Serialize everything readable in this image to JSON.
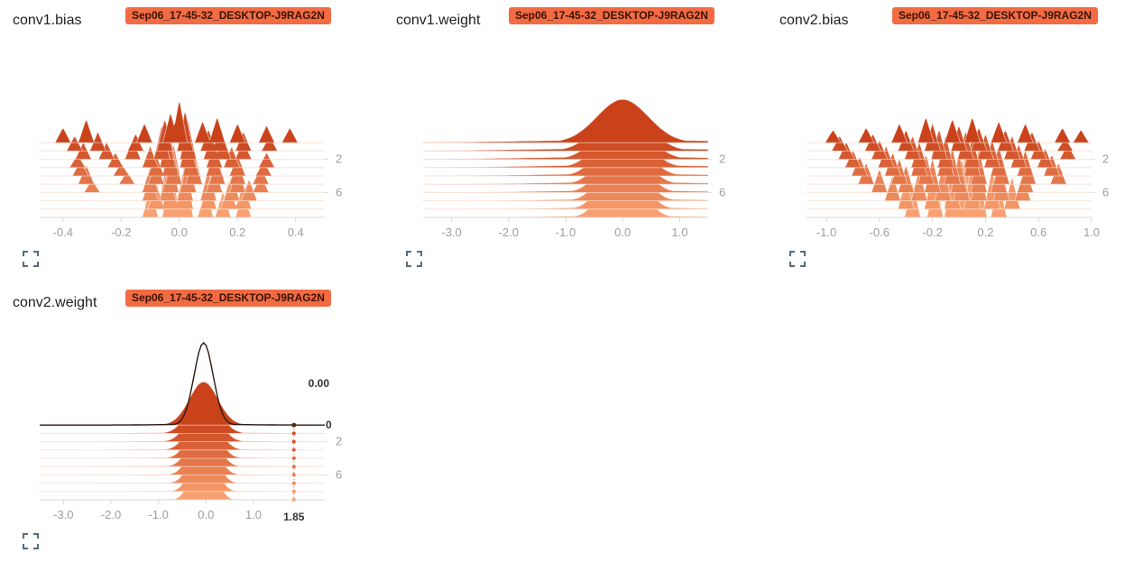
{
  "colors": {
    "ridge_dark": "#c9421a",
    "ridge_light": "#f9a070",
    "tag_bg": "#f26b43",
    "axis": "#d9d9d9",
    "tick_text": "#9e9e9e"
  },
  "icons": {
    "expand": "fullscreen-icon"
  },
  "cards": [
    {
      "title": "conv1.bias",
      "run": "Sep06_17-45-32_DESKTOP-J9RAG2N"
    },
    {
      "title": "conv1.weight",
      "run": "Sep06_17-45-32_DESKTOP-J9RAG2N"
    },
    {
      "title": "conv2.bias",
      "run": "Sep06_17-45-32_DESKTOP-J9RAG2N"
    },
    {
      "title": "conv2.weight",
      "run": "Sep06_17-45-32_DESKTOP-J9RAG2N"
    }
  ],
  "chart_data": [
    {
      "type": "area",
      "title": "conv1.bias",
      "xlim": [
        -0.48,
        0.5
      ],
      "xticks": [
        "-0.4",
        "-0.2",
        "0.0",
        "0.2",
        "0.4"
      ],
      "xtick_values": [
        -0.4,
        -0.2,
        0.0,
        0.2,
        0.4
      ],
      "yticks": [
        "2",
        "6"
      ],
      "ytick_values": [
        2,
        6
      ],
      "steps": [
        0,
        1,
        2,
        3,
        4,
        5,
        6,
        7,
        8,
        9
      ],
      "series": [
        {
          "x": [
            -0.4,
            -0.32,
            -0.12,
            -0.03,
            0.0,
            0.08,
            0.13,
            0.2,
            0.3,
            0.38
          ],
          "y": [
            0.35,
            0.55,
            0.45,
            0.7,
            1.0,
            0.5,
            0.6,
            0.45,
            0.4,
            0.35
          ]
        },
        {
          "x": [
            -0.36,
            -0.28,
            -0.15,
            -0.05,
            0.02,
            0.1,
            0.14,
            0.22,
            0.31
          ],
          "y": [
            0.35,
            0.45,
            0.4,
            0.75,
            0.95,
            0.5,
            0.55,
            0.45,
            0.35
          ]
        },
        {
          "x": [
            -0.33,
            -0.25,
            -0.16,
            -0.06,
            0.03,
            0.11,
            0.15,
            0.22
          ],
          "y": [
            0.4,
            0.4,
            0.45,
            0.8,
            0.9,
            0.5,
            0.55,
            0.45
          ]
        },
        {
          "x": [
            -0.35,
            -0.22,
            -0.1,
            -0.04,
            0.03,
            0.12,
            0.18,
            0.3
          ],
          "y": [
            0.3,
            0.35,
            0.5,
            0.85,
            0.9,
            0.55,
            0.5,
            0.35
          ]
        },
        {
          "x": [
            -0.34,
            -0.2,
            -0.08,
            -0.03,
            0.04,
            0.12,
            0.2,
            0.29
          ],
          "y": [
            0.35,
            0.3,
            0.5,
            0.9,
            0.85,
            0.6,
            0.5,
            0.35
          ]
        },
        {
          "x": [
            -0.32,
            -0.18,
            -0.08,
            -0.02,
            0.05,
            0.13,
            0.2,
            0.28
          ],
          "y": [
            0.45,
            0.3,
            0.55,
            0.95,
            0.85,
            0.65,
            0.55,
            0.4
          ]
        },
        {
          "x": [
            -0.3,
            -0.1,
            -0.03,
            0.03,
            0.12,
            0.2,
            0.28
          ],
          "y": [
            0.3,
            0.6,
            1.0,
            0.85,
            0.7,
            0.6,
            0.4
          ]
        },
        {
          "x": [
            -0.1,
            -0.04,
            0.02,
            0.1,
            0.18,
            0.24
          ],
          "y": [
            0.6,
            1.05,
            0.9,
            0.75,
            0.6,
            0.5
          ]
        },
        {
          "x": [
            -0.08,
            -0.03,
            0.02,
            0.1,
            0.17,
            0.22
          ],
          "y": [
            0.65,
            1.2,
            1.0,
            0.7,
            0.65,
            0.6
          ]
        },
        {
          "x": [
            -0.1,
            -0.03,
            0.02,
            0.09,
            0.15,
            0.22
          ],
          "y": [
            0.7,
            1.55,
            1.1,
            0.65,
            0.6,
            0.55
          ]
        }
      ]
    },
    {
      "type": "area",
      "title": "conv1.weight",
      "xlim": [
        -3.5,
        1.5
      ],
      "xticks": [
        "-3.0",
        "-2.0",
        "-1.0",
        "0.0",
        "1.0"
      ],
      "xtick_values": [
        -3.0,
        -2.0,
        -1.0,
        0.0,
        1.0
      ],
      "yticks": [
        "2",
        "6"
      ],
      "ytick_values": [
        2,
        6
      ],
      "steps": [
        0,
        1,
        2,
        3,
        4,
        5,
        6,
        7,
        8,
        9
      ],
      "series": [
        {
          "mu": 0.0,
          "sigma": 0.45,
          "peak": 1.0,
          "tail": 0.06
        },
        {
          "mu": 0.0,
          "sigma": 0.42,
          "peak": 1.05,
          "tail": 0.06
        },
        {
          "mu": 0.0,
          "sigma": 0.4,
          "peak": 1.1,
          "tail": 0.06
        },
        {
          "mu": 0.0,
          "sigma": 0.38,
          "peak": 1.15,
          "tail": 0.06
        },
        {
          "mu": 0.0,
          "sigma": 0.36,
          "peak": 1.2,
          "tail": 0.05
        },
        {
          "mu": 0.0,
          "sigma": 0.34,
          "peak": 1.25,
          "tail": 0.05
        },
        {
          "mu": 0.0,
          "sigma": 0.33,
          "peak": 1.3,
          "tail": 0.05
        },
        {
          "mu": 0.0,
          "sigma": 0.32,
          "peak": 1.35,
          "tail": 0.04
        },
        {
          "mu": 0.0,
          "sigma": 0.31,
          "peak": 1.4,
          "tail": 0.04
        },
        {
          "mu": 0.0,
          "sigma": 0.3,
          "peak": 1.45,
          "tail": 0.04
        }
      ]
    },
    {
      "type": "area",
      "title": "conv2.bias",
      "xlim": [
        -1.15,
        1.0
      ],
      "xticks": [
        "-1.0",
        "-0.6",
        "-0.2",
        "0.2",
        "0.6",
        "1.0"
      ],
      "xtick_values": [
        -1.0,
        -0.6,
        -0.2,
        0.2,
        0.6,
        1.0
      ],
      "yticks": [
        "2",
        "6"
      ],
      "ytick_values": [
        2,
        6
      ],
      "steps": [
        0,
        1,
        2,
        3,
        4,
        5,
        6,
        7,
        8,
        9
      ],
      "series": [
        {
          "x": [
            -0.95,
            -0.7,
            -0.45,
            -0.25,
            -0.05,
            0.1,
            0.3,
            0.5,
            0.78,
            0.92
          ],
          "y": [
            0.3,
            0.35,
            0.45,
            0.6,
            0.55,
            0.6,
            0.5,
            0.45,
            0.35,
            0.3
          ]
        },
        {
          "x": [
            -0.9,
            -0.65,
            -0.4,
            -0.2,
            0.0,
            0.15,
            0.35,
            0.55,
            0.8
          ],
          "y": [
            0.35,
            0.4,
            0.5,
            0.65,
            0.6,
            0.55,
            0.5,
            0.45,
            0.3
          ]
        },
        {
          "x": [
            -0.85,
            -0.6,
            -0.35,
            -0.15,
            0.05,
            0.2,
            0.4,
            0.6,
            0.82
          ],
          "y": [
            0.4,
            0.45,
            0.55,
            0.7,
            0.65,
            0.6,
            0.55,
            0.45,
            0.35
          ]
        },
        {
          "x": [
            -0.8,
            -0.55,
            -0.3,
            -0.1,
            0.1,
            0.25,
            0.45,
            0.65
          ],
          "y": [
            0.4,
            0.5,
            0.6,
            0.75,
            0.7,
            0.65,
            0.55,
            0.45
          ]
        },
        {
          "x": [
            -0.75,
            -0.5,
            -0.3,
            -0.1,
            0.1,
            0.3,
            0.5,
            0.7
          ],
          "y": [
            0.45,
            0.55,
            0.65,
            0.8,
            0.75,
            0.7,
            0.6,
            0.5
          ]
        },
        {
          "x": [
            -0.7,
            -0.45,
            -0.25,
            -0.05,
            0.15,
            0.32,
            0.52,
            0.75
          ],
          "y": [
            0.5,
            0.6,
            0.7,
            0.85,
            0.8,
            0.7,
            0.6,
            0.5
          ]
        },
        {
          "x": [
            -0.6,
            -0.4,
            -0.2,
            0.0,
            0.15,
            0.3,
            0.5
          ],
          "y": [
            0.55,
            0.65,
            0.8,
            0.9,
            0.85,
            0.75,
            0.6
          ]
        },
        {
          "x": [
            -0.5,
            -0.3,
            -0.12,
            0.02,
            0.15,
            0.32,
            0.48
          ],
          "y": [
            0.6,
            0.75,
            0.9,
            1.0,
            0.95,
            0.8,
            0.65
          ]
        },
        {
          "x": [
            -0.4,
            -0.2,
            -0.05,
            0.1,
            0.25,
            0.4
          ],
          "y": [
            0.7,
            0.9,
            1.1,
            1.2,
            0.95,
            0.75
          ]
        },
        {
          "x": [
            -0.35,
            -0.18,
            -0.05,
            0.05,
            0.15,
            0.3
          ],
          "y": [
            0.8,
            1.0,
            1.3,
            1.6,
            1.2,
            0.85
          ]
        }
      ]
    },
    {
      "type": "area",
      "title": "conv2.weight",
      "xlim": [
        -3.5,
        2.5
      ],
      "xticks": [
        "-3.0",
        "-2.0",
        "-1.0",
        "0.0",
        "1.0"
      ],
      "xtick_values": [
        -3.0,
        -2.0,
        -1.0,
        0.0,
        1.0
      ],
      "yticks": [
        "2",
        "6"
      ],
      "ytick_values": [
        2,
        6
      ],
      "steps": [
        0,
        1,
        2,
        3,
        4,
        5,
        6,
        7,
        8,
        9
      ],
      "hover": {
        "x_label": "1.85",
        "value_label": "0.00",
        "step_label": "0"
      },
      "series": [
        {
          "mu": -0.05,
          "sigma": 0.3,
          "peak": 1.0,
          "tail": 0.02
        },
        {
          "mu": -0.05,
          "sigma": 0.29,
          "peak": 1.05,
          "tail": 0.02
        },
        {
          "mu": -0.05,
          "sigma": 0.28,
          "peak": 1.1,
          "tail": 0.02
        },
        {
          "mu": -0.05,
          "sigma": 0.27,
          "peak": 1.15,
          "tail": 0.02
        },
        {
          "mu": -0.05,
          "sigma": 0.26,
          "peak": 1.2,
          "tail": 0.02
        },
        {
          "mu": -0.05,
          "sigma": 0.25,
          "peak": 1.25,
          "tail": 0.02
        },
        {
          "mu": -0.05,
          "sigma": 0.24,
          "peak": 1.3,
          "tail": 0.02
        },
        {
          "mu": -0.05,
          "sigma": 0.23,
          "peak": 1.35,
          "tail": 0.02
        },
        {
          "mu": -0.05,
          "sigma": 0.22,
          "peak": 1.4,
          "tail": 0.02
        },
        {
          "mu": -0.05,
          "sigma": 0.2,
          "peak": 1.9,
          "tail": 0.02
        }
      ]
    }
  ]
}
